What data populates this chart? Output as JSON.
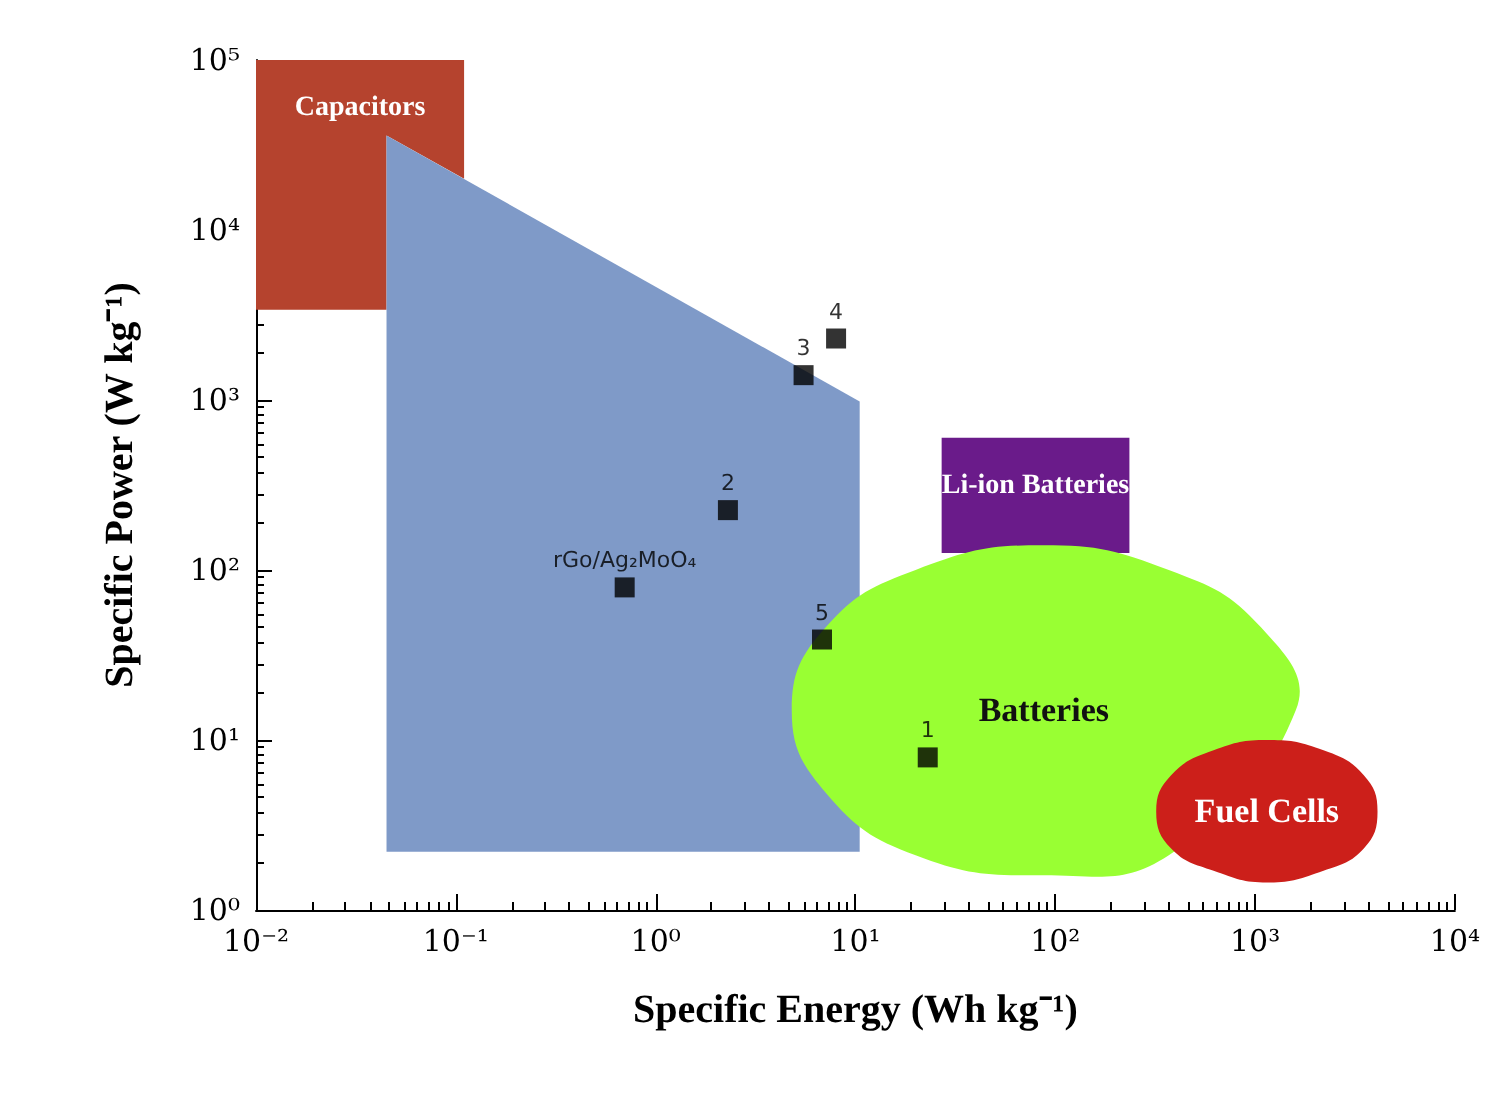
{
  "chart_data": {
    "type": "scatter",
    "xlabel": "Specific Energy (Wh kg⁻¹)",
    "ylabel": "Specific Power (W kg⁻¹)",
    "log": "xy",
    "xlim": [
      0.01,
      10000
    ],
    "ylim": [
      1,
      100000
    ],
    "xticks": [
      {
        "value": 0.01,
        "label": "10⁻²"
      },
      {
        "value": 0.1,
        "label": "10⁻¹"
      },
      {
        "value": 1,
        "label": "10⁰"
      },
      {
        "value": 10,
        "label": "10¹"
      },
      {
        "value": 100,
        "label": "10²"
      },
      {
        "value": 1000,
        "label": "10³"
      },
      {
        "value": 10000,
        "label": "10⁴"
      }
    ],
    "yticks": [
      {
        "value": 1,
        "label": "10⁰"
      },
      {
        "value": 10,
        "label": "10¹"
      },
      {
        "value": 100,
        "label": "10²"
      },
      {
        "value": 1000,
        "label": "10³"
      },
      {
        "value": 10000,
        "label": "10⁴"
      },
      {
        "value": 100000,
        "label": "10⁵"
      }
    ],
    "grid": false,
    "series": [
      {
        "type": "area",
        "name": "Capacitors",
        "color": "#b5432e",
        "x": [
          0.01,
          0.11,
          0.11,
          0.045,
          0.045,
          0.01
        ],
        "values": [
          100000,
          100000,
          20000,
          36000,
          3400,
          3400
        ]
      },
      {
        "type": "area",
        "color": "#7f9ac8",
        "x": [
          0.045,
          10.5,
          10.5,
          0.045
        ],
        "values": [
          36000,
          980,
          2.2,
          2.2
        ]
      },
      {
        "type": "area",
        "name": "Li-ion Batteries",
        "color": "#6a1b8a",
        "x": [
          27,
          235,
          235,
          27
        ],
        "values": [
          600,
          600,
          126,
          126
        ]
      },
      {
        "type": "area",
        "name": "Batteries",
        "color": "#99ff33",
        "x": [
          1600,
          1070,
          370,
          87,
          20,
          7.1,
          4.8,
          7.1,
          20,
          87,
          370
        ],
        "values": [
          15,
          46,
          100,
          140,
          100,
          46,
          15,
          4.9,
          2.1,
          1.6,
          2.1
        ]
      },
      {
        "type": "area",
        "name": "Fuel Cells",
        "color": "#cc1f1a",
        "x": [
          4100,
          3500,
          2200,
          1150,
          620,
          380,
          320,
          380,
          620,
          1150,
          2200,
          3500
        ],
        "values": [
          3.8,
          6.2,
          8.7,
          10,
          8.7,
          6.2,
          3.8,
          2.3,
          1.7,
          1.45,
          1.7,
          2.3
        ]
      },
      {
        "color": "#000000",
        "marker": "square",
        "x": [
          0.7,
          2.3,
          5.5,
          8.0,
          6.8,
          23
        ],
        "values": [
          79,
          225,
          1400,
          2300,
          39,
          7.9
        ]
      }
    ],
    "annotations": [
      {
        "text": "rGo/Ag₂MoO₄",
        "x": 0.7,
        "y": 79
      },
      {
        "text": "2",
        "x": 2.3,
        "y": 225
      },
      {
        "text": "3",
        "x": 5.5,
        "y": 1400
      },
      {
        "text": "4",
        "x": 8.0,
        "y": 2300
      },
      {
        "text": "5",
        "x": 6.8,
        "y": 39
      },
      {
        "text": "1",
        "x": 23,
        "y": 7.9
      }
    ]
  }
}
